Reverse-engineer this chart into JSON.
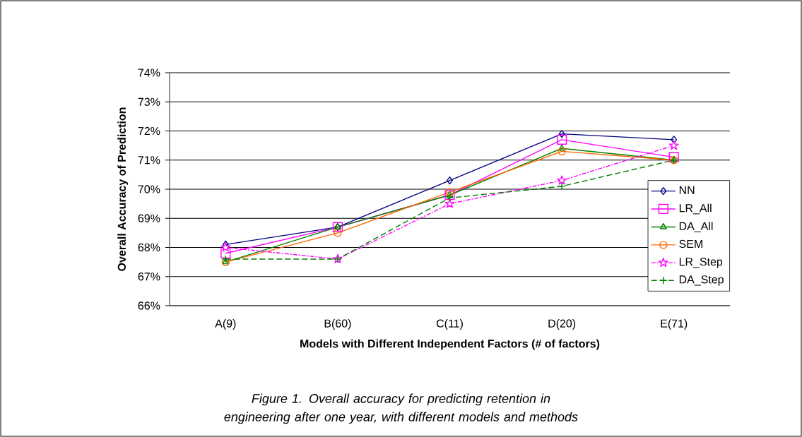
{
  "chart_data": {
    "type": "line",
    "xlabel": "Models with Different Independent Factors (# of factors)",
    "ylabel": "Overall Accuracy of Prediction",
    "categories": [
      "A(9)",
      "B(60)",
      "C(11)",
      "D(20)",
      "E(71)"
    ],
    "ylim": [
      66,
      74
    ],
    "yticks": [
      {
        "value": 66,
        "label": "66%"
      },
      {
        "value": 67,
        "label": "67%"
      },
      {
        "value": 68,
        "label": "68%"
      },
      {
        "value": 69,
        "label": "69%"
      },
      {
        "value": 70,
        "label": "70%"
      },
      {
        "value": 71,
        "label": "71%"
      },
      {
        "value": 72,
        "label": "72%"
      },
      {
        "value": 73,
        "label": "73%"
      },
      {
        "value": 74,
        "label": "74%"
      }
    ],
    "grid": "y",
    "legend": "right",
    "series": [
      {
        "name": "NN",
        "color": "#000080",
        "marker": "diamond",
        "line_style": "solid",
        "values": [
          68.1,
          68.7,
          70.3,
          71.9,
          71.7
        ]
      },
      {
        "name": "LR_All",
        "color": "#ff00ff",
        "marker": "square",
        "line_style": "solid",
        "values": [
          67.8,
          68.7,
          69.8,
          71.7,
          71.1
        ]
      },
      {
        "name": "DA_All",
        "color": "#008000",
        "marker": "triangle",
        "line_style": "solid",
        "values": [
          67.5,
          68.7,
          69.8,
          71.4,
          71.0
        ]
      },
      {
        "name": "SEM",
        "color": "#ff6600",
        "marker": "circle",
        "line_style": "solid",
        "values": [
          67.5,
          68.5,
          69.9,
          71.3,
          71.0
        ]
      },
      {
        "name": "LR_Step",
        "color": "#ff00ff",
        "marker": "star",
        "line_style": "dashdot",
        "values": [
          68.0,
          67.6,
          69.5,
          70.3,
          71.5
        ]
      },
      {
        "name": "DA_Step",
        "color": "#008000",
        "marker": "cross",
        "line_style": "dashed",
        "values": [
          67.6,
          67.6,
          69.7,
          70.1,
          71.0
        ]
      }
    ],
    "annotations": [
      "Figure 1.  Overall accuracy for predicting retention in engineering after one year, with different models and methods"
    ]
  }
}
